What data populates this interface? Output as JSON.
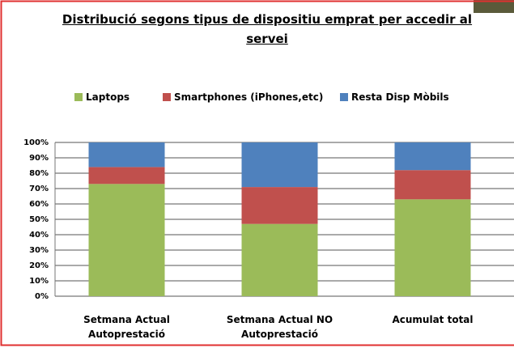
{
  "chart_data": {
    "type": "stacked_bar",
    "title": "Distribució segons tipus de dispositiu emprat per accedir al servei",
    "categories": [
      "Setmana Actual Autoprestació",
      "Setmana Actual NO Autoprestació",
      "Acumulat total"
    ],
    "series": [
      {
        "name": "Laptops",
        "color": "#9bbb59",
        "values": [
          73,
          47,
          63
        ]
      },
      {
        "name": "Smartphones (iPhones,etc)",
        "color": "#c0504d",
        "values": [
          11,
          24,
          19
        ]
      },
      {
        "name": "Resta Disp Mòbils",
        "color": "#4f81bd",
        "values": [
          16,
          29,
          18
        ]
      }
    ],
    "ylim": [
      0,
      100
    ],
    "yticks": [
      {
        "value": 0,
        "label": "0%"
      },
      {
        "value": 10,
        "label": "10%"
      },
      {
        "value": 20,
        "label": "20%"
      },
      {
        "value": 30,
        "label": "30%"
      },
      {
        "value": 40,
        "label": "40%"
      },
      {
        "value": 50,
        "label": "50%"
      },
      {
        "value": 60,
        "label": "60%"
      },
      {
        "value": 70,
        "label": "70%"
      },
      {
        "value": 80,
        "label": "80%"
      },
      {
        "value": 90,
        "label": "90%"
      },
      {
        "value": 100,
        "label": "100%"
      }
    ],
    "grid": true,
    "legend": "top"
  }
}
